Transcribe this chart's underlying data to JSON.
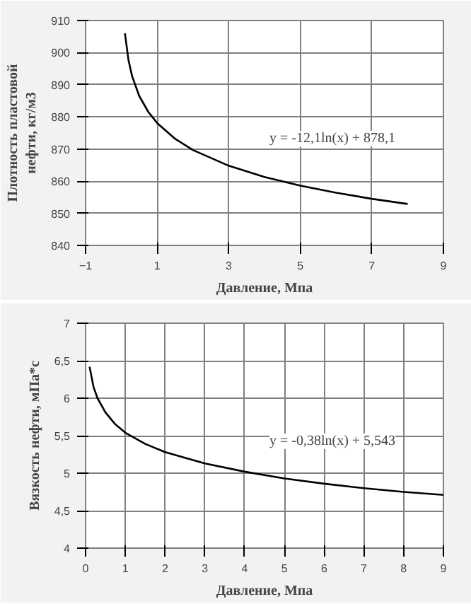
{
  "chart_data": [
    {
      "type": "line",
      "xlabel": "Давление, Мпа",
      "ylabel": "Плотность пластовой\nнефти, кг/м3",
      "x": [
        0.1,
        0.2,
        0.3,
        0.5,
        0.75,
        1,
        1.5,
        2,
        3,
        4,
        5,
        6,
        7,
        8
      ],
      "series": [
        {
          "color": "#000000",
          "values": [
            906,
            897.6,
            892.7,
            886.5,
            881.6,
            878.1,
            873.2,
            869.7,
            864.8,
            861.3,
            858.6,
            856.4,
            854.5,
            852.9
          ]
        }
      ],
      "xlim": [
        -1,
        9
      ],
      "xticks": [
        -1,
        1,
        3,
        5,
        7,
        9
      ],
      "ylim": [
        840,
        910
      ],
      "yticks": [
        840,
        850,
        860,
        870,
        880,
        890,
        900,
        910
      ],
      "grid": true,
      "marker": "none",
      "line_style": "solid",
      "annotations": [
        "y = -12,1ln(x) + 878,1"
      ]
    },
    {
      "type": "line",
      "xlabel": "Давление, Мпа",
      "ylabel": "Вязкость нефти, мПа*с",
      "x": [
        0.1,
        0.2,
        0.3,
        0.5,
        0.75,
        1,
        1.5,
        2,
        3,
        4,
        5,
        6,
        7,
        8,
        9
      ],
      "series": [
        {
          "color": "#000000",
          "values": [
            6.42,
            6.15,
            6.0,
            5.81,
            5.65,
            5.54,
            5.39,
            5.28,
            5.13,
            5.02,
            4.93,
            4.86,
            4.8,
            4.75,
            4.71
          ]
        }
      ],
      "xlim": [
        0,
        9
      ],
      "xticks": [
        0,
        1,
        2,
        3,
        4,
        5,
        6,
        7,
        8,
        9
      ],
      "ylim": [
        4,
        7
      ],
      "yticks": [
        4,
        {
          "value": 4.5,
          "label": "4,5"
        },
        5,
        {
          "value": 5.5,
          "label": "5,5"
        },
        6,
        {
          "value": 6.5,
          "label": "6,5"
        },
        7
      ],
      "grid": true,
      "marker": "none",
      "line_style": "solid",
      "annotations": [
        "y = -0,38ln(x) + 5,543"
      ]
    }
  ]
}
